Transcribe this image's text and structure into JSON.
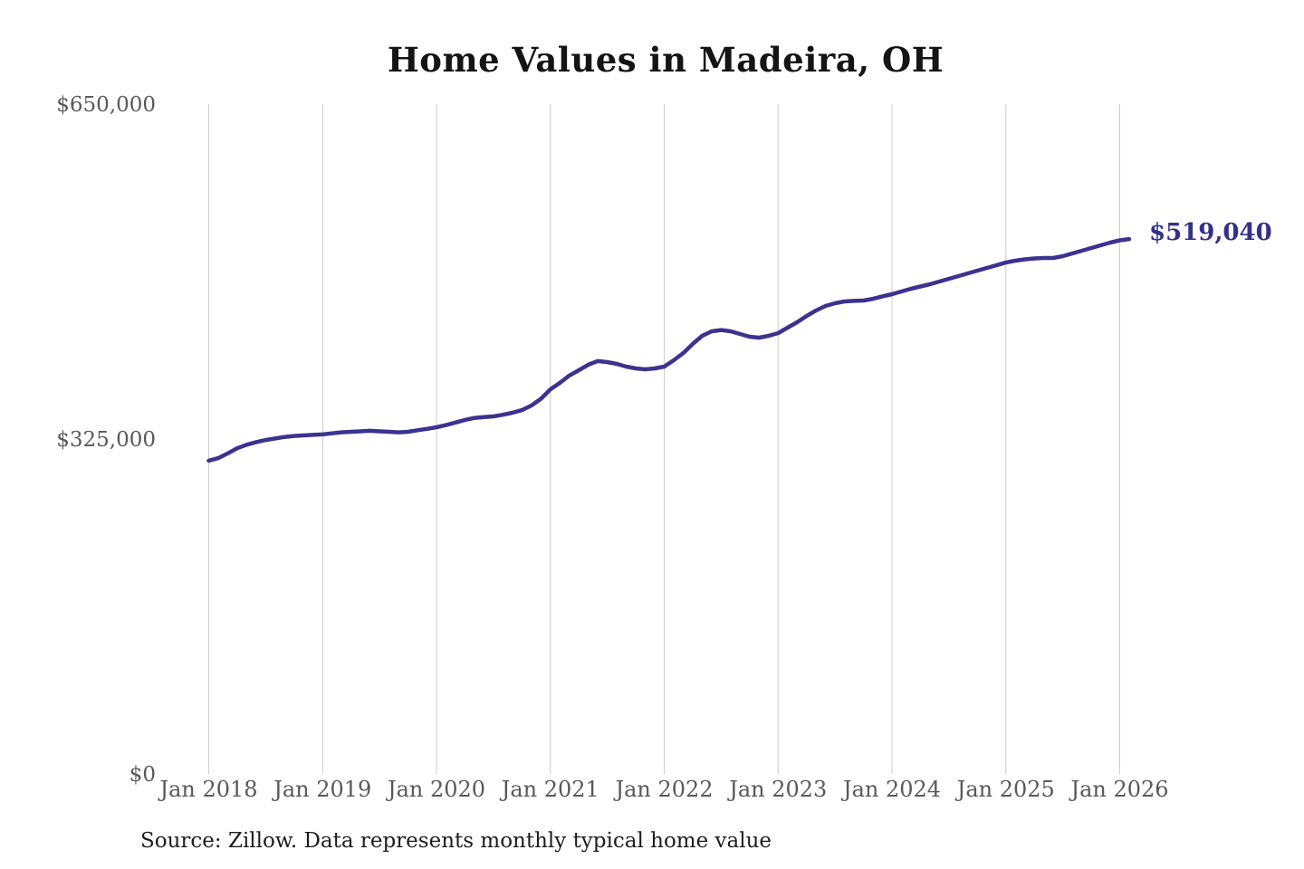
{
  "page": {
    "title": "Home Values in Madeira, OH",
    "source_note": "Source: Zillow. Data represents monthly typical home value"
  },
  "colors": {
    "background": "#ffffff",
    "line": "#3a338f",
    "annotation": "#333188",
    "grid": "#cccccc",
    "tick_label": "#595959",
    "title": "#141414",
    "source": "#1d1d1d"
  },
  "chart_data": {
    "type": "line",
    "title": "Home Values in Madeira, OH",
    "xlabel": "",
    "ylabel": "",
    "ylim": [
      0,
      650000
    ],
    "grid": "vertical-only",
    "legend": "none",
    "y_ticks": [
      {
        "value": 0,
        "label": "$0"
      },
      {
        "value": 325000,
        "label": "$325,000"
      },
      {
        "value": 650000,
        "label": "$650,000"
      }
    ],
    "x_ticks": [
      "Jan 2018",
      "Jan 2019",
      "Jan 2020",
      "Jan 2021",
      "Jan 2022",
      "Jan 2023",
      "Jan 2024",
      "Jan 2025",
      "Jan 2026"
    ],
    "months_per_tick": 12,
    "end_annotation": {
      "label": "$519,040",
      "value": 519040
    },
    "series": [
      {
        "name": "Monthly typical home value",
        "start": "Jan 2018",
        "end": "Feb 2026",
        "frequency": "monthly",
        "values": [
          304000,
          306500,
          311000,
          316000,
          319500,
          322000,
          324000,
          325500,
          327000,
          328000,
          328500,
          329000,
          329500,
          330500,
          331500,
          332000,
          332500,
          333000,
          332500,
          332000,
          331500,
          332000,
          333500,
          334800,
          336400,
          338500,
          341000,
          343500,
          345500,
          346300,
          347000,
          348500,
          350500,
          353000,
          357500,
          364000,
          373200,
          379500,
          386600,
          391800,
          397100,
          400600,
          399700,
          397900,
          395300,
          393500,
          392600,
          393500,
          395300,
          401400,
          408400,
          417200,
          425100,
          429500,
          430800,
          429500,
          426900,
          424300,
          423400,
          425100,
          427800,
          433000,
          438300,
          444400,
          449700,
          454100,
          456800,
          458500,
          459000,
          459400,
          461100,
          463400,
          465500,
          468200,
          470800,
          473000,
          475200,
          477800,
          480500,
          483100,
          485700,
          488400,
          491000,
          493600,
          496300,
          498000,
          499400,
          500200,
          500700,
          500700,
          502400,
          505100,
          507700,
          510300,
          513000,
          515600,
          517800,
          519040
        ]
      }
    ]
  }
}
